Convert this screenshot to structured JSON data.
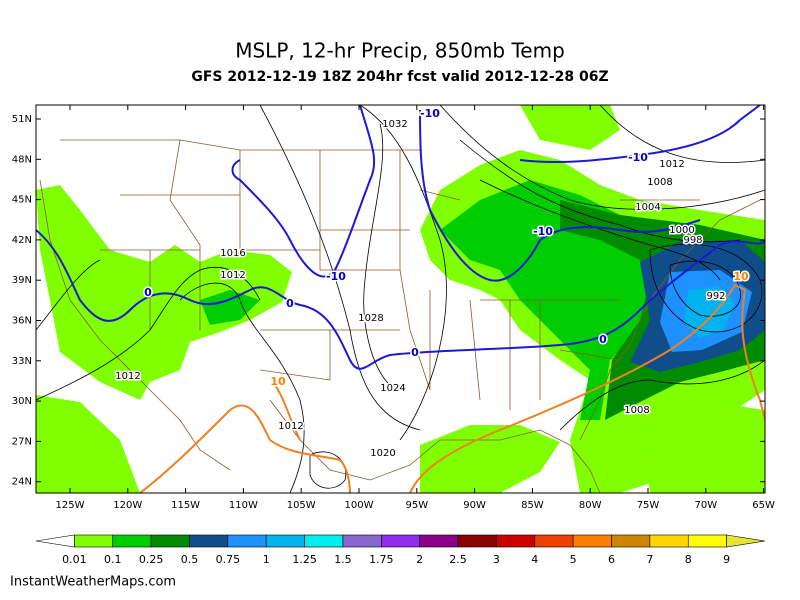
{
  "header": {
    "title": "MSLP, 12-hr Precip, 850mb Temp",
    "subtitle": "GFS 2012-12-19 18Z 204hr fcst valid 2012-12-28 06Z"
  },
  "map": {
    "lat_labels": [
      "51N",
      "48N",
      "45N",
      "42N",
      "39N",
      "36N",
      "33N",
      "30N",
      "27N",
      "24N"
    ],
    "lon_labels": [
      "125W",
      "120W",
      "115W",
      "110W",
      "105W",
      "100W",
      "95W",
      "90W",
      "85W",
      "80W",
      "75W",
      "70W",
      "65W"
    ],
    "contour_labels": [
      {
        "text": "1032",
        "color": "#000000"
      },
      {
        "text": "-10",
        "color": "#0000cc"
      },
      {
        "text": "-10",
        "color": "#0000cc"
      },
      {
        "text": "1012",
        "color": "#000000"
      },
      {
        "text": "1008",
        "color": "#000000"
      },
      {
        "text": "1004",
        "color": "#000000"
      },
      {
        "text": "-10",
        "color": "#0000cc"
      },
      {
        "text": "1000",
        "color": "#000000"
      },
      {
        "text": "998",
        "color": "#000000"
      },
      {
        "text": "10",
        "color": "#ff7f00"
      },
      {
        "text": "992",
        "color": "#000000"
      },
      {
        "text": "1016",
        "color": "#000000"
      },
      {
        "text": "1012",
        "color": "#000000"
      },
      {
        "text": "0",
        "color": "#0000cc"
      },
      {
        "text": "0",
        "color": "#0000cc"
      },
      {
        "text": "-10",
        "color": "#0000cc"
      },
      {
        "text": "1028",
        "color": "#000000"
      },
      {
        "text": "0",
        "color": "#0000cc"
      },
      {
        "text": "0",
        "color": "#0000cc"
      },
      {
        "text": "1012",
        "color": "#000000"
      },
      {
        "text": "1024",
        "color": "#000000"
      },
      {
        "text": "10",
        "color": "#ff7f00"
      },
      {
        "text": "1012",
        "color": "#000000"
      },
      {
        "text": "1020",
        "color": "#000000"
      },
      {
        "text": "1008",
        "color": "#000000"
      }
    ]
  },
  "colorbar": {
    "labels": [
      "0.01",
      "0.1",
      "0.25",
      "0.5",
      "0.75",
      "1",
      "1.25",
      "1.5",
      "1.75",
      "2",
      "2.5",
      "3",
      "4",
      "5",
      "6",
      "7",
      "8",
      "9"
    ],
    "colors": [
      "#ffffff",
      "#7fff00",
      "#00cd00",
      "#008b00",
      "#104e8b",
      "#1e90ff",
      "#00b2ee",
      "#00eeee",
      "#8968cd",
      "#912cee",
      "#8b008b",
      "#8b0000",
      "#cd0000",
      "#ee4000",
      "#ff7f00",
      "#cd8500",
      "#ffd700",
      "#ffff00",
      "#e5e533"
    ]
  },
  "footer": {
    "credit": "InstantWeatherMaps.com"
  }
}
